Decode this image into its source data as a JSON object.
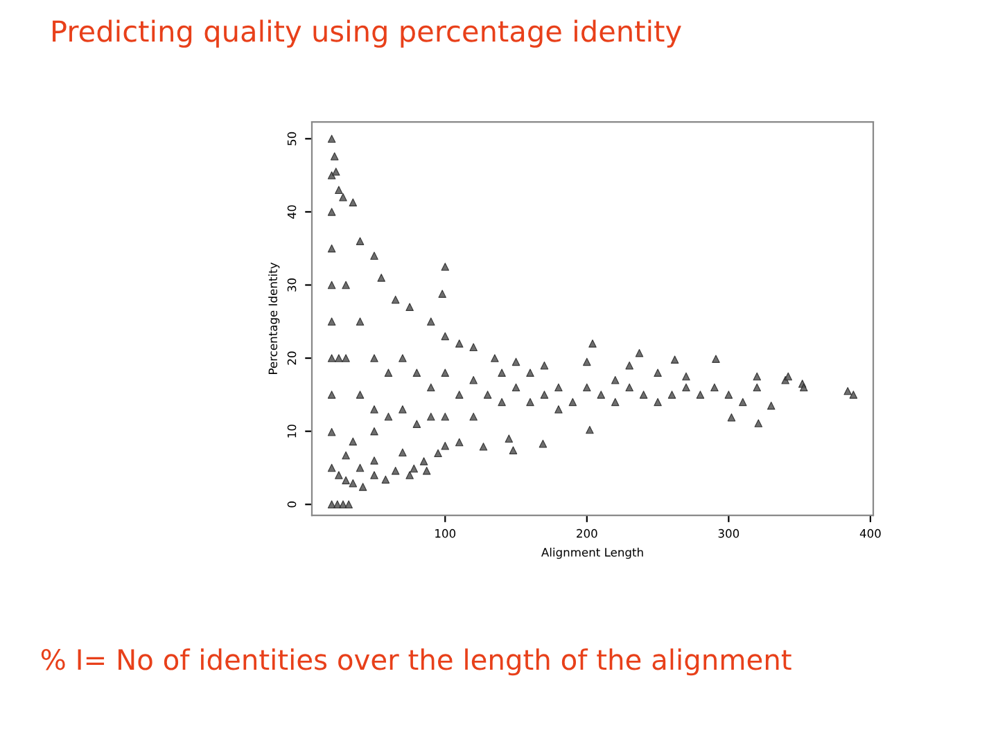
{
  "chart_data": {
    "type": "scatter",
    "title": "Predicting quality using percentage identity",
    "xlabel": "Alignment Length",
    "ylabel": "Percentage Identity",
    "annotations": [
      "% I= No of identities over the length of the alignment"
    ],
    "x": [
      20,
      24,
      28,
      32,
      20,
      25,
      30,
      35,
      42,
      30,
      40,
      50,
      58,
      20,
      35,
      50,
      65,
      75,
      25,
      50,
      70,
      85,
      20,
      20,
      20,
      20,
      20,
      20,
      20,
      20,
      22,
      23,
      25,
      28,
      35,
      40,
      50,
      55,
      65,
      75,
      90,
      100,
      110,
      120,
      135,
      150,
      170,
      200,
      230,
      250,
      270,
      290,
      320,
      340,
      352,
      384,
      100,
      98,
      204,
      237,
      262,
      291,
      342,
      353,
      388,
      321,
      302,
      148,
      127,
      145,
      87,
      78,
      169,
      202,
      30,
      30,
      40,
      40,
      50,
      50,
      60,
      60,
      70,
      70,
      80,
      80,
      90,
      90,
      100,
      100,
      110,
      120,
      120,
      130,
      140,
      140,
      150,
      160,
      160,
      170,
      180,
      180,
      190,
      200,
      210,
      220,
      220,
      230,
      240,
      250,
      260,
      270,
      280,
      300,
      310,
      330,
      320,
      95,
      100,
      110
    ],
    "values": [
      0,
      0,
      0,
      0,
      5,
      4,
      3.3,
      2.9,
      2.4,
      6.7,
      5,
      4,
      3.4,
      15,
      8.6,
      6,
      4.6,
      4,
      20,
      10,
      7.1,
      5.9,
      9.9,
      20,
      25,
      30,
      35,
      40,
      45,
      50,
      47.6,
      45.5,
      43,
      42,
      41.3,
      36,
      34,
      31,
      28,
      27,
      25,
      23,
      22,
      21.5,
      20,
      19.5,
      19,
      19.5,
      19,
      18,
      17.5,
      16,
      16,
      17,
      16.5,
      15.5,
      32.5,
      28.8,
      22,
      20.7,
      19.8,
      19.9,
      17.5,
      16,
      15,
      11.1,
      11.9,
      7.4,
      7.9,
      9,
      4.6,
      4.9,
      8.3,
      10.2,
      30,
      20,
      25,
      15,
      20,
      13,
      18,
      12,
      20,
      13,
      18,
      11,
      16,
      12,
      18,
      12,
      15,
      17,
      12,
      15,
      14,
      18,
      16,
      14,
      18,
      15,
      16,
      13,
      14,
      16,
      15,
      14,
      17,
      16,
      15,
      14,
      15,
      16,
      15,
      15,
      14,
      13.5,
      17.5,
      7,
      8,
      8.5
    ],
    "color": "#555555",
    "marker": "triangle",
    "xlim": [
      6,
      402
    ],
    "ylim": [
      -1.5,
      52.3
    ],
    "xticks": [
      100,
      200,
      300,
      400
    ],
    "yticks": [
      0,
      10,
      20,
      30,
      40,
      50
    ],
    "grid": false,
    "legend": false
  }
}
